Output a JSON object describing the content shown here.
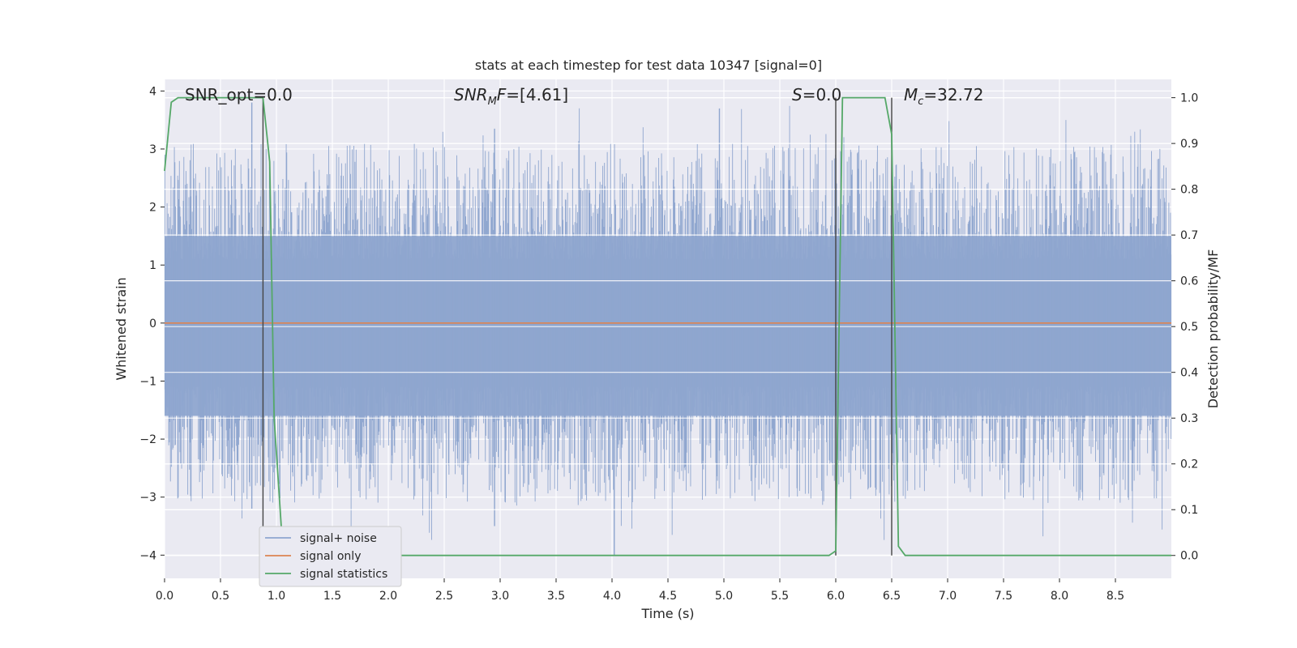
{
  "chart_data": {
    "type": "line",
    "title": "stats at each timestep for test data 10347 [signal=0]",
    "xlabel": "Time (s)",
    "ylabel_left": "Whitened strain",
    "ylabel_right": "Detection probability/MF",
    "xlim": [
      0.0,
      9.0
    ],
    "ylim_left": [
      -4.4,
      4.2
    ],
    "ylim_right": [
      -0.05,
      1.04
    ],
    "x_ticks": [
      0.0,
      0.5,
      1.0,
      1.5,
      2.0,
      2.5,
      3.0,
      3.5,
      4.0,
      4.5,
      5.0,
      5.5,
      6.0,
      6.5,
      7.0,
      7.5,
      8.0,
      8.5
    ],
    "x_tick_labels": [
      "0.0",
      "0.5",
      "1.0",
      "1.5",
      "2.0",
      "2.5",
      "3.0",
      "3.5",
      "4.0",
      "4.5",
      "5.0",
      "5.5",
      "6.0",
      "6.5",
      "7.0",
      "7.5",
      "8.0",
      "8.5"
    ],
    "y_left_ticks": [
      4,
      3,
      2,
      1,
      0,
      -1,
      -2,
      -3,
      -4
    ],
    "y_left_tick_labels": [
      "4",
      "3",
      "2",
      "1",
      "0",
      "−1",
      "−2",
      "−3",
      "−4"
    ],
    "y_right_ticks": [
      1.0,
      0.9,
      0.8,
      0.7,
      0.6,
      0.5,
      0.4,
      0.3,
      0.2,
      0.1,
      0.0
    ],
    "y_right_tick_labels": [
      "1.0",
      "0.9",
      "0.8",
      "0.7",
      "0.6",
      "0.5",
      "0.4",
      "0.3",
      "0.2",
      "0.1",
      "0.0"
    ],
    "grid": true,
    "legend_position": "lower-left",
    "annotations": {
      "snr_opt": "SNR_opt=0.0",
      "snr_mf": "=[4.61]",
      "s": "=0.0",
      "mc": "=32.72"
    },
    "noise": {
      "name": "signal+ noise",
      "color": "#8fa6cf",
      "approx_samples": 1800,
      "peak_upper": 3.8,
      "peak_lower": -4.0,
      "typical_upper": 1.5,
      "typical_lower": -1.6
    },
    "signal_only": {
      "name": "signal only",
      "color": "#dd8452",
      "value": 0.0
    },
    "signal_statistics": {
      "name": "signal statistics",
      "color": "#55a868",
      "x": [
        0.0,
        0.06,
        0.12,
        0.3,
        0.6,
        0.88,
        0.94,
        0.98,
        1.06,
        1.2,
        5.0,
        5.94,
        6.0,
        6.06,
        6.12,
        6.3,
        6.44,
        6.5,
        6.56,
        6.62,
        7.0,
        8.0,
        9.0
      ],
      "y": [
        0.84,
        0.99,
        1.0,
        1.0,
        1.0,
        1.0,
        0.86,
        0.3,
        0.0,
        0.0,
        0.0,
        0.0,
        0.01,
        1.0,
        1.0,
        1.0,
        1.0,
        0.92,
        0.02,
        0.0,
        0.0,
        0.0,
        0.0
      ]
    },
    "vertical_lines_x": [
      0.88,
      6.0,
      6.5
    ]
  }
}
